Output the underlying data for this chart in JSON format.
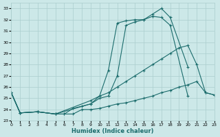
{
  "xlabel": "Humidex (Indice chaleur)",
  "xlim": [
    0,
    23
  ],
  "ylim": [
    23,
    33.5
  ],
  "xtick_labels": [
    "0",
    "1",
    "2",
    "3",
    "4",
    "5",
    "6",
    "7",
    "8",
    "9",
    "10",
    "11",
    "12",
    "13",
    "14",
    "15",
    "16",
    "17",
    "18",
    "19",
    "20",
    "21",
    "22",
    "23"
  ],
  "xticks": [
    0,
    1,
    2,
    3,
    4,
    5,
    6,
    7,
    8,
    9,
    10,
    11,
    12,
    13,
    14,
    15,
    16,
    17,
    18,
    19,
    20,
    21,
    22,
    23
  ],
  "yticks": [
    23,
    24,
    25,
    26,
    27,
    28,
    29,
    30,
    31,
    32,
    33
  ],
  "background_color": "#cce8e8",
  "grid_color": "#aacece",
  "line_color": "#1a6b6b",
  "lines": [
    {
      "x": [
        0,
        1,
        3,
        5,
        9,
        10,
        11,
        12,
        13,
        14,
        15,
        16,
        17,
        18,
        20
      ],
      "y": [
        25.5,
        23.7,
        23.8,
        23.6,
        24.8,
        25.2,
        27.5,
        31.7,
        31.9,
        32.0,
        32.0,
        32.5,
        33.0,
        32.2,
        27.8
      ]
    },
    {
      "x": [
        0,
        1,
        3,
        5,
        9,
        10,
        11,
        12,
        13,
        14,
        15,
        16,
        17,
        18,
        20
      ],
      "y": [
        25.5,
        23.7,
        23.8,
        23.6,
        24.5,
        25.0,
        25.2,
        27.0,
        31.5,
        31.8,
        32.0,
        32.3,
        32.2,
        31.5,
        25.2
      ]
    },
    {
      "x": [
        0,
        1,
        3,
        5,
        6,
        7,
        8,
        9,
        10,
        11,
        12,
        13,
        14,
        15,
        16,
        17,
        18,
        19,
        20,
        21,
        22,
        23
      ],
      "y": [
        25.5,
        23.7,
        23.8,
        23.6,
        23.6,
        24.1,
        24.3,
        24.5,
        25.2,
        25.5,
        26.0,
        26.5,
        27.0,
        27.5,
        28.0,
        28.5,
        29.0,
        29.5,
        29.7,
        28.0,
        25.5,
        25.3
      ]
    },
    {
      "x": [
        0,
        1,
        3,
        5,
        6,
        7,
        8,
        9,
        10,
        11,
        12,
        13,
        14,
        15,
        16,
        17,
        18,
        19,
        20,
        21,
        22,
        23
      ],
      "y": [
        25.5,
        23.7,
        23.8,
        23.6,
        23.6,
        23.6,
        24.0,
        24.0,
        24.1,
        24.3,
        24.5,
        24.6,
        24.8,
        25.0,
        25.2,
        25.5,
        25.7,
        26.0,
        26.2,
        26.5,
        25.5,
        25.3
      ]
    }
  ]
}
